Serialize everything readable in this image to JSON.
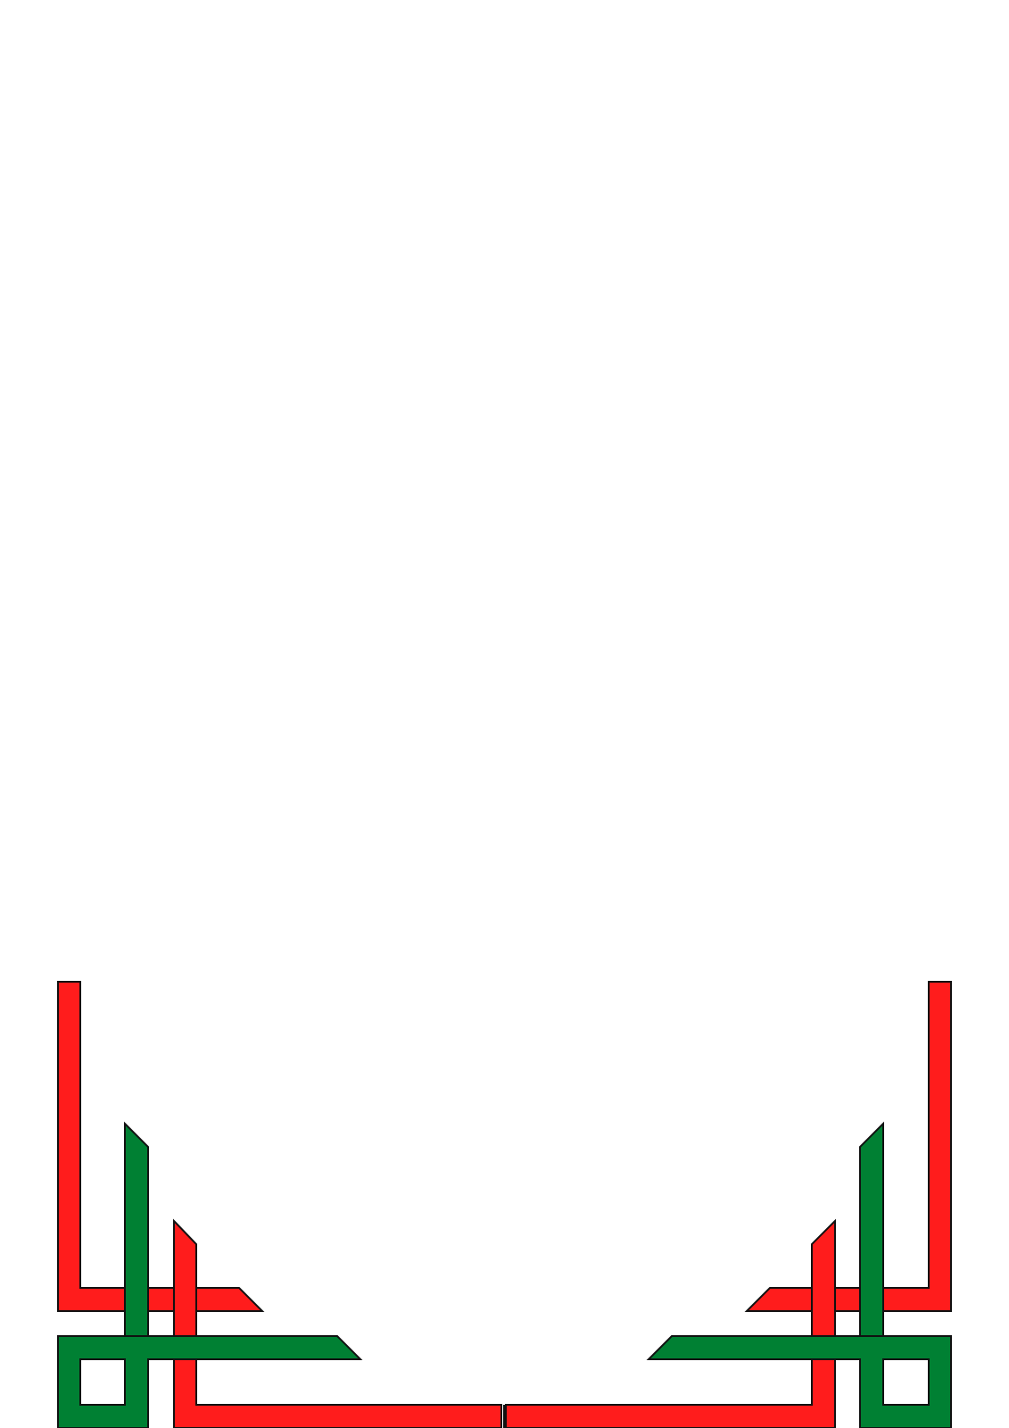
{
  "ornament": {
    "style": "geometric interlaced frame corners",
    "colors": {
      "red": "#ff1c1c",
      "green": "#008033",
      "outline": "#111111",
      "background": "#ffffff"
    }
  }
}
